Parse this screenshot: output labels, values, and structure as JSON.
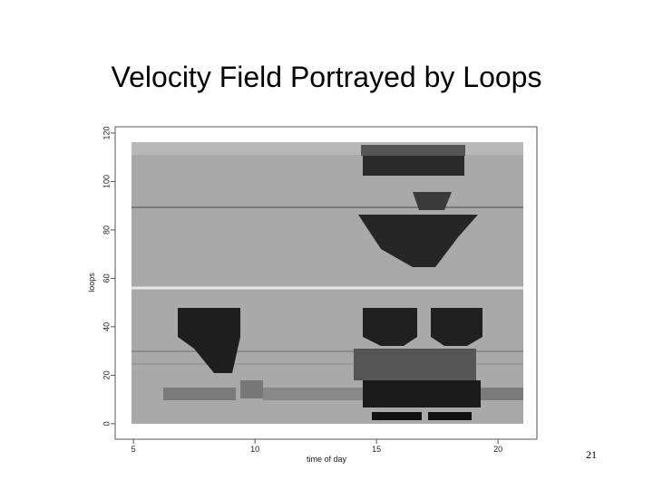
{
  "slide": {
    "title": "Velocity Field Portrayed by Loops",
    "page_number": "21"
  },
  "chart_data": {
    "type": "image",
    "xlabel": "time of day",
    "ylabel": "loops",
    "xlim": [
      4.25,
      21.6
    ],
    "ylim": [
      -6.4,
      122.6
    ],
    "xticks": [
      5,
      10,
      15,
      20
    ],
    "yticks": [
      0,
      20,
      40,
      60,
      80,
      100,
      120
    ]
  }
}
